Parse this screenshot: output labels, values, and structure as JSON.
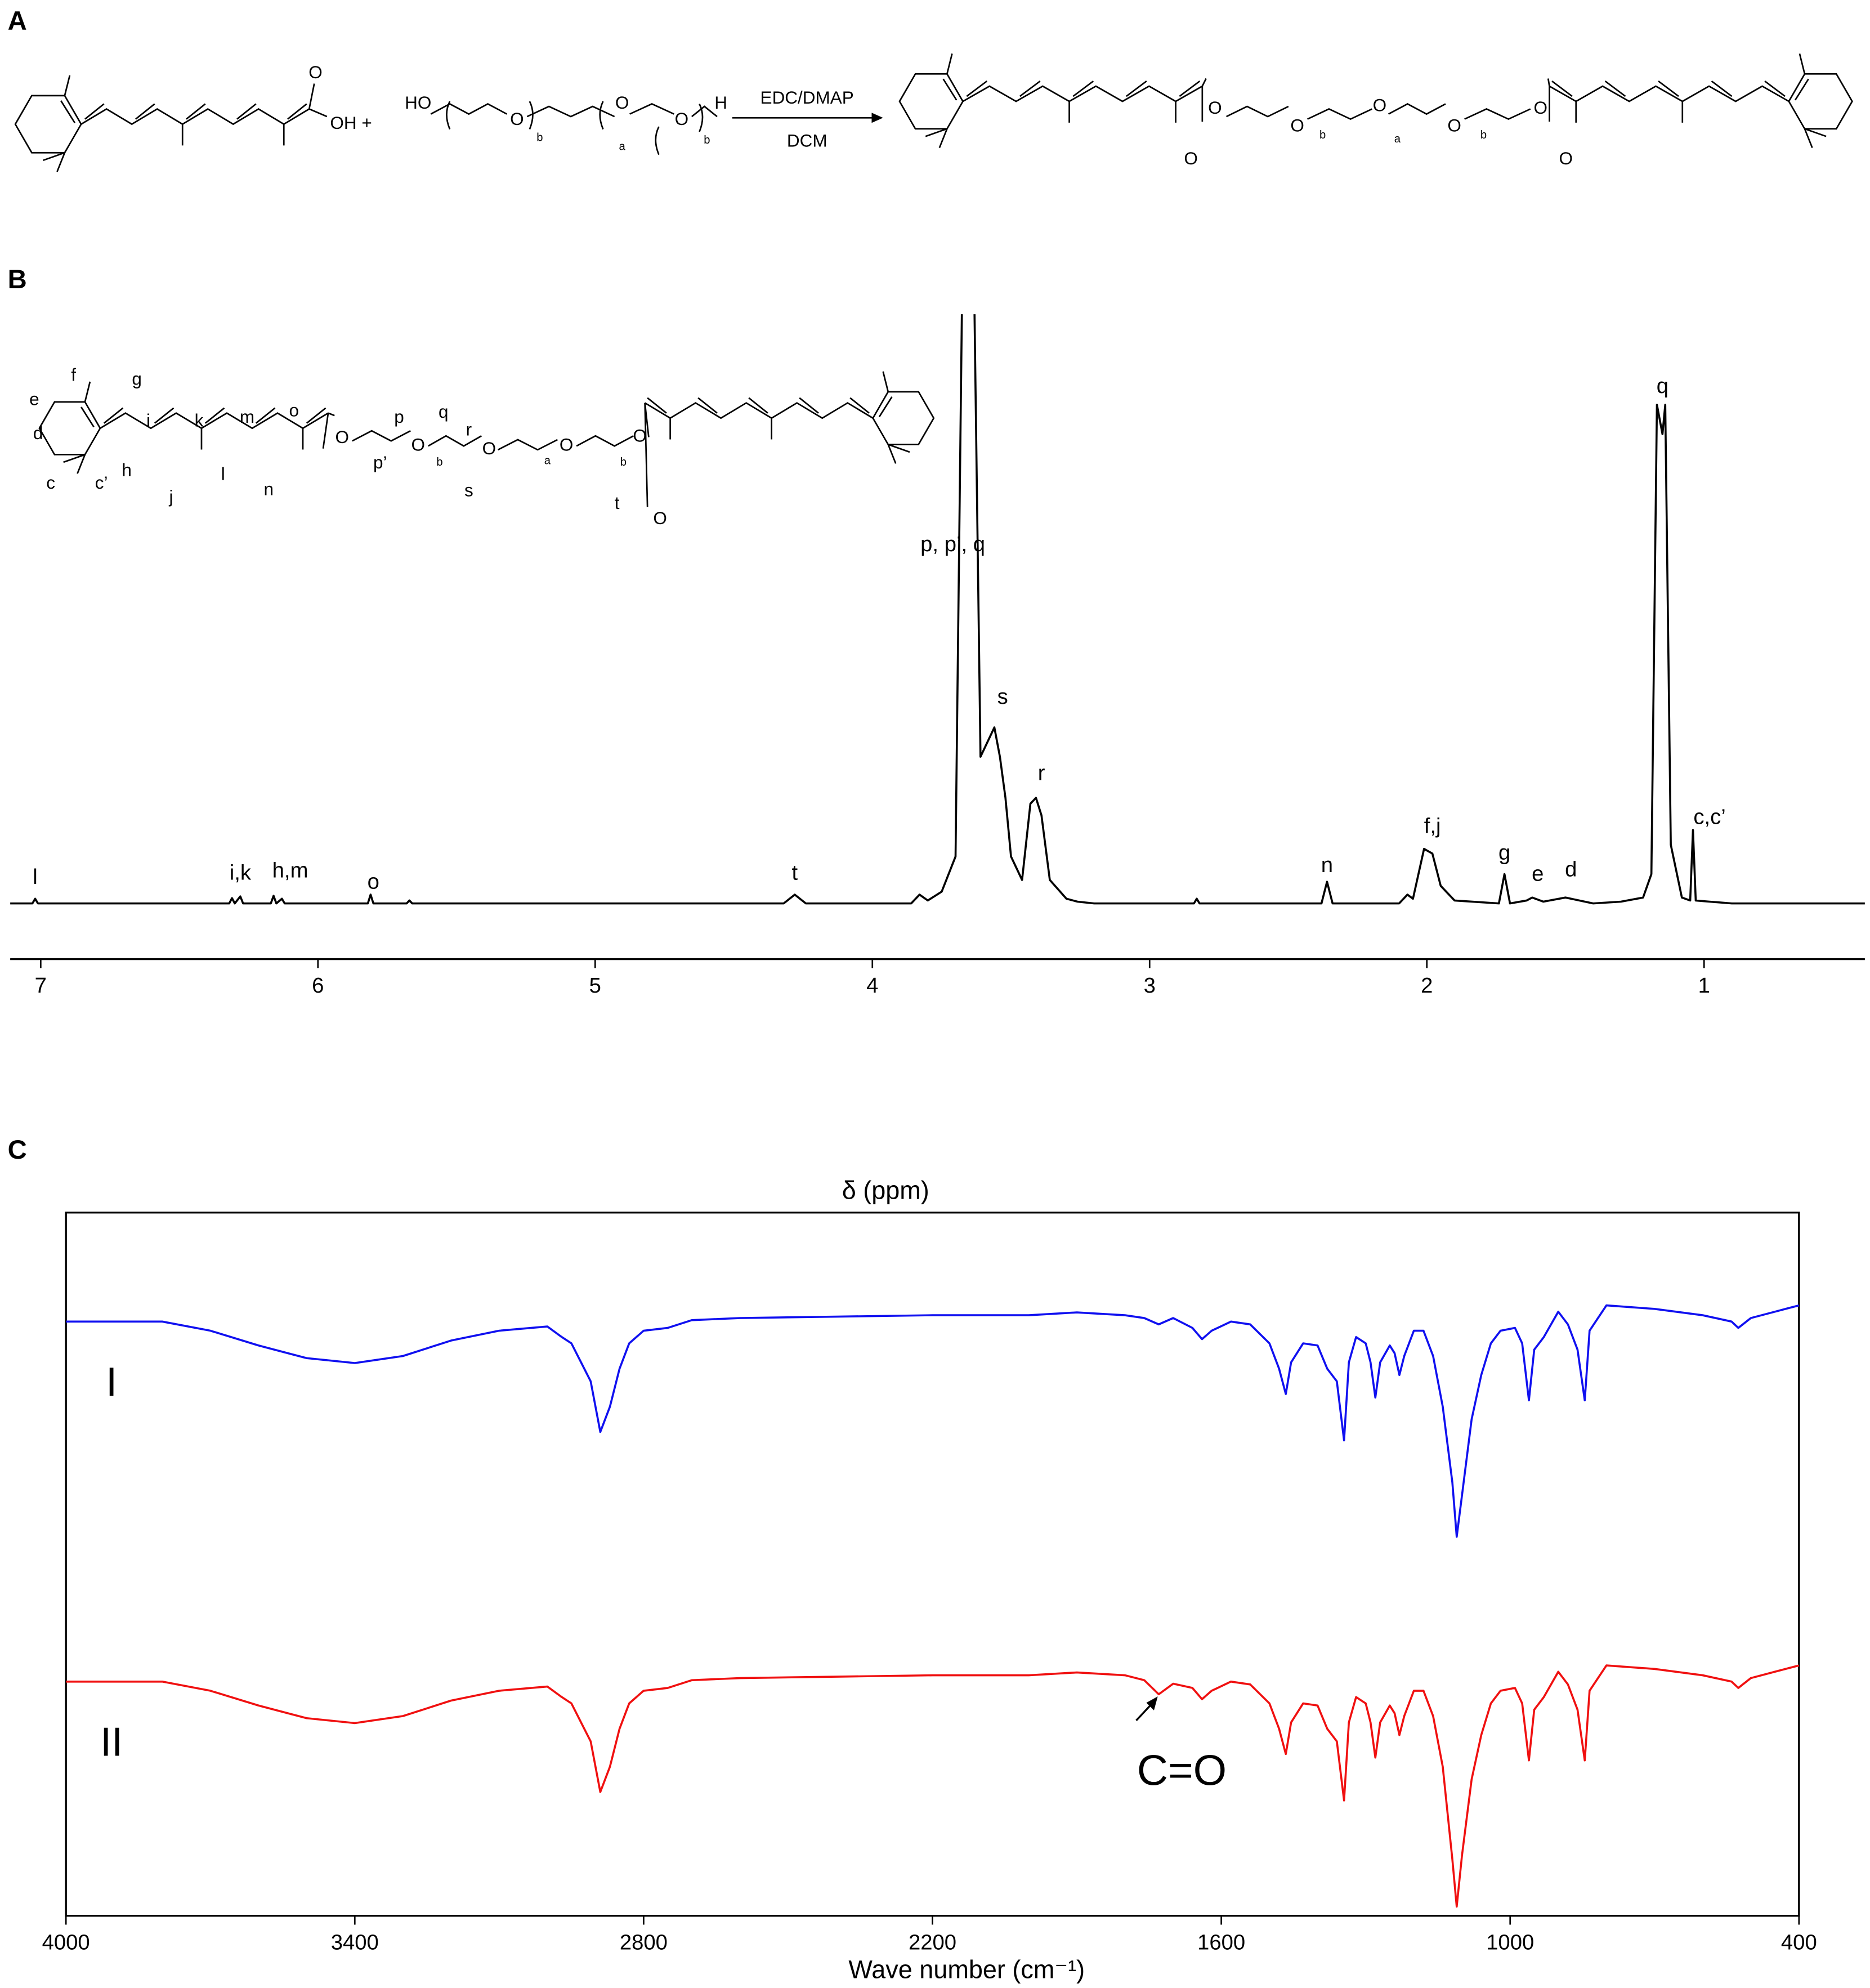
{
  "panel_labels": [
    "A",
    "B",
    "C"
  ],
  "scheme": {
    "reactant_1": {
      "labels": [
        "O",
        "OH +"
      ]
    },
    "reactant_2": {
      "labels": [
        "HO",
        "O",
        "b",
        "O",
        "a",
        "O",
        "b",
        "H"
      ]
    },
    "reagents": [
      "EDC/DMAP",
      "DCM"
    ],
    "product": {
      "labels": [
        "O",
        "O",
        "O",
        "b",
        "O",
        "a",
        "O",
        "b",
        "O",
        "O"
      ]
    }
  },
  "nmr_structure": {
    "labels": [
      "f",
      "g",
      "e",
      "i",
      "k",
      "m",
      "o",
      "d",
      "h",
      "l",
      "c",
      "c’",
      "j",
      "n",
      "O",
      "p",
      "q",
      "r",
      "p’",
      "O",
      "b",
      "O",
      "s",
      "a",
      "O",
      "b",
      "t",
      "O",
      "O"
    ]
  },
  "chart_data": [
    {
      "type": "line",
      "x_label": "δ (ppm)",
      "color": "#000000",
      "xlim": [
        7.11,
        0.42
      ],
      "ylim": [
        -9.5,
        100
      ],
      "xticks": [
        7,
        6,
        5,
        4,
        3,
        2,
        1
      ],
      "x": [
        7.11,
        7.03,
        7.02,
        7.01,
        6.32,
        6.31,
        6.3,
        6.28,
        6.27,
        6.17,
        6.16,
        6.15,
        6.13,
        6.12,
        5.82,
        5.81,
        5.8,
        5.68,
        5.67,
        5.66,
        4.32,
        4.28,
        4.24,
        3.86,
        3.83,
        3.8,
        3.75,
        3.7,
        3.67,
        3.64,
        3.61,
        3.58,
        3.56,
        3.54,
        3.52,
        3.5,
        3.46,
        3.43,
        3.41,
        3.39,
        3.36,
        3.3,
        3.26,
        3.2,
        2.84,
        2.83,
        2.82,
        2.38,
        2.36,
        2.34,
        2.1,
        2.07,
        2.05,
        2.01,
        1.98,
        1.95,
        1.9,
        1.74,
        1.72,
        1.7,
        1.64,
        1.62,
        1.58,
        1.5,
        1.48,
        1.4,
        1.3,
        1.22,
        1.19,
        1.17,
        1.15,
        1.14,
        1.12,
        1.08,
        1.05,
        1.04,
        1.03,
        0.98,
        0.9,
        0.42
      ],
      "values": [
        0,
        0,
        0.8,
        0,
        0,
        0.9,
        0,
        1.2,
        0,
        0,
        1.3,
        0,
        0.8,
        0,
        0,
        1.5,
        0,
        0,
        0.5,
        0,
        0,
        1.5,
        0,
        0,
        1.5,
        0.5,
        2,
        8,
        130,
        130,
        25,
        28,
        30,
        25,
        18,
        8,
        4,
        17,
        18,
        15,
        4,
        0.8,
        0.3,
        0,
        0,
        0.8,
        0,
        0,
        3.7,
        0,
        0,
        1.5,
        0.8,
        9.3,
        8.5,
        3,
        0.5,
        0,
        5,
        0,
        0.5,
        1,
        0.3,
        1,
        0.8,
        0,
        0.3,
        1,
        5,
        85,
        80,
        85,
        10,
        1,
        0.5,
        12.5,
        0.5,
        0.3,
        0,
        0
      ],
      "annotations": [
        {
          "text": "l",
          "x": 7.02,
          "y": 4.3
        },
        {
          "text": "i,k",
          "x": 6.28,
          "y": 5.0
        },
        {
          "text": "h,m",
          "x": 6.1,
          "y": 5.4
        },
        {
          "text": "o",
          "x": 5.8,
          "y": 3.5
        },
        {
          "text": "t",
          "x": 4.28,
          "y": 5.0
        },
        {
          "text": "p, p’, q",
          "x": 3.71,
          "y": 61
        },
        {
          "text": "s",
          "x": 3.53,
          "y": 35
        },
        {
          "text": "r",
          "x": 3.39,
          "y": 22
        },
        {
          "text": "n",
          "x": 2.36,
          "y": 6.3
        },
        {
          "text": "f,j",
          "x": 1.98,
          "y": 13
        },
        {
          "text": "g",
          "x": 1.72,
          "y": 8.4
        },
        {
          "text": "e",
          "x": 1.6,
          "y": 4.8
        },
        {
          "text": "d",
          "x": 1.48,
          "y": 5.6
        },
        {
          "text": "q",
          "x": 1.15,
          "y": 88
        },
        {
          "text": "c,c’",
          "x": 0.98,
          "y": 14.5
        }
      ]
    },
    {
      "type": "line",
      "x_label": "Wave number (cm⁻¹)",
      "xlim": [
        4000,
        400
      ],
      "ylim": [
        0,
        100
      ],
      "xticks": [
        4000,
        3400,
        2800,
        2200,
        1600,
        1000,
        400
      ],
      "x": [
        4000,
        3800,
        3700,
        3600,
        3500,
        3400,
        3300,
        3200,
        3100,
        3000,
        2970,
        2950,
        2930,
        2910,
        2890,
        2870,
        2850,
        2830,
        2800,
        2750,
        2700,
        2600,
        2400,
        2200,
        2000,
        1900,
        1800,
        1760,
        1730,
        1700,
        1660,
        1640,
        1620,
        1580,
        1540,
        1500,
        1480,
        1466,
        1455,
        1430,
        1400,
        1380,
        1360,
        1345,
        1335,
        1320,
        1300,
        1290,
        1280,
        1270,
        1250,
        1240,
        1230,
        1220,
        1200,
        1180,
        1160,
        1140,
        1120,
        1111,
        1100,
        1080,
        1060,
        1040,
        1020,
        990,
        975,
        961,
        950,
        930,
        900,
        880,
        860,
        845,
        835,
        800,
        700,
        600,
        540,
        526,
        500,
        450,
        400
      ],
      "series": [
        {
          "name": "I",
          "color": "#1010f0",
          "values": [
            84.5,
            84.5,
            83.2,
            81.1,
            79.3,
            78.6,
            79.6,
            81.8,
            83.2,
            83.8,
            82.3,
            81.4,
            78.7,
            76.0,
            68.8,
            72.4,
            77.8,
            81.4,
            83.2,
            83.6,
            84.7,
            85.0,
            85.2,
            85.4,
            85.4,
            85.8,
            85.4,
            85.0,
            84.1,
            85.0,
            83.6,
            82.0,
            83.2,
            84.5,
            84.1,
            81.4,
            77.8,
            74.2,
            78.7,
            81.4,
            81.1,
            77.8,
            76.0,
            67.6,
            78.7,
            82.3,
            81.4,
            78.7,
            73.7,
            78.7,
            81.1,
            80.0,
            76.9,
            79.6,
            83.2,
            83.2,
            79.6,
            72.4,
            61.6,
            53.9,
            59.8,
            70.6,
            76.9,
            81.4,
            83.2,
            83.6,
            81.4,
            73.3,
            80.5,
            82.3,
            85.9,
            84.1,
            80.5,
            73.3,
            83.2,
            86.8,
            86.3,
            85.4,
            84.5,
            83.6,
            85.0,
            85.9,
            86.8
          ]
        },
        {
          "name": "II",
          "color": "#f01010",
          "values": [
            33.3,
            33.3,
            32.0,
            29.9,
            28.1,
            27.4,
            28.4,
            30.6,
            32.0,
            32.6,
            31.1,
            30.2,
            27.5,
            24.8,
            17.6,
            21.2,
            26.6,
            30.2,
            32.0,
            32.4,
            33.5,
            33.8,
            34.0,
            34.2,
            34.2,
            34.6,
            34.2,
            33.5,
            31.5,
            33.0,
            32.4,
            30.8,
            32.0,
            33.3,
            32.9,
            30.2,
            26.6,
            23.0,
            27.5,
            30.2,
            29.9,
            26.6,
            24.8,
            16.4,
            27.5,
            31.1,
            30.2,
            27.5,
            22.5,
            27.5,
            29.9,
            28.8,
            25.7,
            28.4,
            32.0,
            32.0,
            28.4,
            21.2,
            8.0,
            1.3,
            8.6,
            19.4,
            25.7,
            30.2,
            32.0,
            32.4,
            30.2,
            22.1,
            29.3,
            31.1,
            34.7,
            32.9,
            29.3,
            22.1,
            32.0,
            35.6,
            35.1,
            34.2,
            33.3,
            32.4,
            33.8,
            34.7,
            35.6
          ]
        }
      ],
      "annotations": [
        {
          "text": "C=O",
          "x": 1682,
          "y": 20.2
        }
      ]
    }
  ]
}
